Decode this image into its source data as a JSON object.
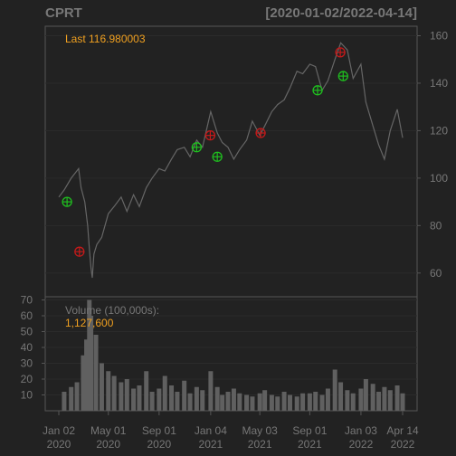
{
  "chart_data": [
    {
      "type": "line",
      "symbol": "CPRT",
      "date_range": "[2020-01-02/2022-04-14]",
      "legend": {
        "label": "Last",
        "value": "116.980003"
      },
      "ylim": [
        50,
        164
      ],
      "y_ticks": [
        60,
        80,
        100,
        120,
        140,
        160
      ],
      "grid": true,
      "x_start": "2020-01-02",
      "x_end": "2022-04-14",
      "x_tick_labels": [
        {
          "date": "2020-01-02",
          "line1": "Jan 02",
          "line2": "2020"
        },
        {
          "date": "2020-05-01",
          "line1": "May 01",
          "line2": "2020"
        },
        {
          "date": "2020-09-01",
          "line1": "Sep 01",
          "line2": "2020"
        },
        {
          "date": "2021-01-04",
          "line1": "Jan 04",
          "line2": "2021"
        },
        {
          "date": "2021-05-03",
          "line1": "May 03",
          "line2": "2021"
        },
        {
          "date": "2021-09-01",
          "line1": "Sep 01",
          "line2": "2021"
        },
        {
          "date": "2022-01-03",
          "line1": "Jan 03",
          "line2": "2022"
        },
        {
          "date": "2022-04-14",
          "line1": "Apr 14",
          "line2": "2022"
        }
      ],
      "series": [
        {
          "x": [
            "2020-01-02",
            "2020-01-15",
            "2020-02-01",
            "2020-02-19",
            "2020-02-25",
            "2020-03-05",
            "2020-03-12",
            "2020-03-16",
            "2020-03-20",
            "2020-03-23",
            "2020-03-27",
            "2020-04-03",
            "2020-04-15",
            "2020-05-01",
            "2020-05-15",
            "2020-06-01",
            "2020-06-15",
            "2020-07-01",
            "2020-07-15",
            "2020-08-01",
            "2020-08-15",
            "2020-09-01",
            "2020-09-15",
            "2020-10-01",
            "2020-10-15",
            "2020-11-01",
            "2020-11-15",
            "2020-12-01",
            "2020-12-15",
            "2021-01-04",
            "2021-01-20",
            "2021-02-01",
            "2021-02-15",
            "2021-03-01",
            "2021-03-15",
            "2021-04-01",
            "2021-04-15",
            "2021-05-03",
            "2021-05-15",
            "2021-06-01",
            "2021-06-15",
            "2021-07-01",
            "2021-07-15",
            "2021-08-01",
            "2021-08-15",
            "2021-09-01",
            "2021-09-15",
            "2021-10-01",
            "2021-10-15",
            "2021-11-01",
            "2021-11-15",
            "2021-12-01",
            "2021-12-15",
            "2022-01-03",
            "2022-01-15",
            "2022-02-01",
            "2022-02-15",
            "2022-03-01",
            "2022-03-15",
            "2022-04-01",
            "2022-04-14"
          ],
          "y": [
            92,
            95,
            100,
            104,
            96,
            90,
            80,
            70,
            62,
            58,
            68,
            72,
            75,
            85,
            88,
            92,
            86,
            93,
            88,
            96,
            100,
            104,
            103,
            108,
            112,
            113,
            109,
            116,
            113,
            128,
            119,
            115,
            113,
            108,
            112,
            116,
            124,
            118,
            122,
            128,
            131,
            133,
            138,
            145,
            144,
            148,
            147,
            137,
            141,
            150,
            157,
            154,
            142,
            148,
            132,
            122,
            114,
            108,
            120,
            129,
            117
          ]
        }
      ],
      "signals": [
        {
          "date": "2020-01-22",
          "value": 90,
          "kind": "buy"
        },
        {
          "date": "2020-02-21",
          "value": 69,
          "kind": "sell"
        },
        {
          "date": "2020-12-01",
          "value": 113,
          "kind": "buy"
        },
        {
          "date": "2021-01-03",
          "value": 118,
          "kind": "sell"
        },
        {
          "date": "2021-01-20",
          "value": 109,
          "kind": "buy"
        },
        {
          "date": "2021-05-05",
          "value": 119,
          "kind": "sell"
        },
        {
          "date": "2021-09-20",
          "value": 137,
          "kind": "buy"
        },
        {
          "date": "2021-11-14",
          "value": 153,
          "kind": "sell"
        },
        {
          "date": "2021-11-21",
          "value": 143,
          "kind": "buy"
        }
      ]
    },
    {
      "type": "bar",
      "title": "Volume (100,000s):",
      "last_value": "1,127,600",
      "ylim": [
        0,
        72
      ],
      "y_ticks": [
        10,
        20,
        30,
        40,
        50,
        60,
        70
      ],
      "x": [
        "2020-01-15",
        "2020-02-01",
        "2020-02-15",
        "2020-03-01",
        "2020-03-09",
        "2020-03-16",
        "2020-03-20",
        "2020-04-01",
        "2020-04-15",
        "2020-05-01",
        "2020-05-15",
        "2020-06-01",
        "2020-06-15",
        "2020-07-01",
        "2020-07-15",
        "2020-08-01",
        "2020-08-15",
        "2020-09-01",
        "2020-09-15",
        "2020-10-01",
        "2020-10-15",
        "2020-11-01",
        "2020-11-15",
        "2020-12-01",
        "2020-12-15",
        "2021-01-04",
        "2021-01-20",
        "2021-02-01",
        "2021-02-15",
        "2021-03-01",
        "2021-03-15",
        "2021-04-01",
        "2021-04-15",
        "2021-05-03",
        "2021-05-15",
        "2021-06-01",
        "2021-06-15",
        "2021-07-01",
        "2021-07-15",
        "2021-08-01",
        "2021-08-15",
        "2021-09-01",
        "2021-09-15",
        "2021-10-01",
        "2021-10-15",
        "2021-11-01",
        "2021-11-15",
        "2021-12-01",
        "2021-12-15",
        "2022-01-03",
        "2022-01-15",
        "2022-02-01",
        "2022-02-15",
        "2022-03-01",
        "2022-03-15",
        "2022-04-01",
        "2022-04-14"
      ],
      "values": [
        12,
        15,
        18,
        35,
        45,
        70,
        60,
        48,
        30,
        25,
        22,
        18,
        20,
        14,
        16,
        25,
        12,
        14,
        22,
        16,
        12,
        19,
        11,
        15,
        13,
        25,
        15,
        10,
        12,
        14,
        11,
        10,
        9,
        11,
        13,
        10,
        9,
        12,
        10,
        9,
        11,
        11,
        12,
        10,
        14,
        26,
        18,
        13,
        11,
        14,
        20,
        17,
        12,
        15,
        13,
        16,
        11
      ]
    }
  ],
  "colors": {
    "background": "#222222",
    "panel_border": "#555555",
    "price_line": "#666666",
    "grid": "#2b2b2b",
    "buy_marker": "#1fbf1f",
    "sell_marker": "#c41a1a",
    "legend_value": "#f0a020",
    "volume_bar": "#606060"
  }
}
